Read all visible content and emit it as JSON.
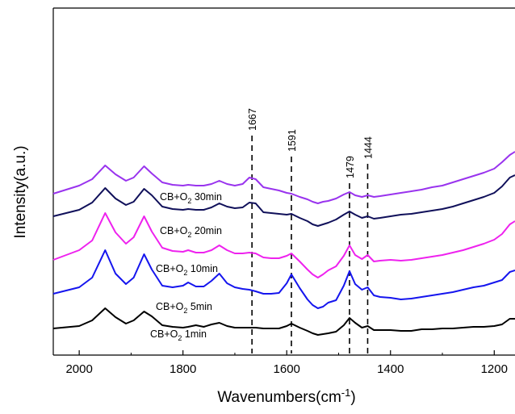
{
  "chart_data": {
    "type": "line",
    "title": "",
    "xlabel": "Wavenumbers(cm",
    "xlabel_sup": "-1",
    "xlabel_close": ")",
    "ylabel": "Intensity(a.u.)",
    "xlim": [
      2050,
      1160
    ],
    "x_reversed": true,
    "y_ticks_shown": false,
    "xticks": [
      {
        "value": 2000,
        "label": "2000"
      },
      {
        "value": 1800,
        "label": "1800"
      },
      {
        "value": 1600,
        "label": "1600"
      },
      {
        "value": 1400,
        "label": "1400"
      },
      {
        "value": 1200,
        "label": "1200"
      }
    ],
    "reference_lines": [
      {
        "x": 1667,
        "label": "1667"
      },
      {
        "x": 1591,
        "label": "1591"
      },
      {
        "x": 1479,
        "label": "1479"
      },
      {
        "x": 1444,
        "label": "1444"
      }
    ],
    "x": [
      2050,
      2000,
      1975,
      1950,
      1930,
      1910,
      1895,
      1875,
      1860,
      1840,
      1820,
      1800,
      1790,
      1775,
      1760,
      1745,
      1730,
      1715,
      1700,
      1685,
      1672,
      1660,
      1645,
      1630,
      1615,
      1600,
      1591,
      1575,
      1560,
      1550,
      1540,
      1530,
      1520,
      1505,
      1490,
      1479,
      1468,
      1455,
      1444,
      1432,
      1420,
      1400,
      1380,
      1360,
      1340,
      1320,
      1300,
      1280,
      1260,
      1240,
      1220,
      1200,
      1185,
      1170,
      1160
    ],
    "series": [
      {
        "name": "CB+O₂ 1min",
        "label_main": "CB+O",
        "label_sub": "2",
        "label_rest": " 1min",
        "color": "#000000",
        "values": [
          0.0,
          3,
          10,
          25,
          14,
          6,
          10,
          21,
          15,
          4,
          2,
          1,
          2,
          4,
          2,
          5,
          7,
          3,
          1,
          1,
          1,
          1,
          0,
          0,
          0,
          3,
          6,
          1,
          -3,
          -6,
          -8,
          -7,
          -6,
          -4,
          4,
          13,
          7,
          1,
          3,
          -2,
          -2,
          -2,
          -3,
          -3,
          -1,
          -1,
          0,
          0,
          1,
          2,
          2,
          3,
          5,
          12,
          12
        ]
      },
      {
        "name": "CB+O₂ 5min",
        "label_main": "CB+O",
        "label_sub": "2",
        "label_rest": " 5min",
        "color": "#1515ee",
        "values": [
          0,
          8,
          20,
          54,
          25,
          12,
          20,
          49,
          30,
          10,
          8,
          10,
          14,
          9,
          9,
          16,
          25,
          13,
          8,
          6,
          5,
          3,
          0,
          0,
          1,
          13,
          24,
          7,
          -7,
          -14,
          -18,
          -16,
          -11,
          -8,
          10,
          28,
          12,
          5,
          8,
          -2,
          -4,
          -5,
          -7,
          -6,
          -4,
          -2,
          0,
          2,
          5,
          8,
          10,
          14,
          17,
          27,
          29
        ]
      },
      {
        "name": "CB+O₂ 10min",
        "label_main": "CB+O",
        "label_sub": "2",
        "label_rest": " 10min",
        "color": "#ee22ee",
        "values": [
          0,
          12,
          24,
          58,
          34,
          20,
          28,
          54,
          35,
          15,
          11,
          10,
          12,
          9,
          9,
          12,
          18,
          12,
          8,
          8,
          9,
          8,
          3,
          2,
          2,
          5,
          8,
          -2,
          -12,
          -18,
          -22,
          -18,
          -13,
          -8,
          5,
          18,
          6,
          1,
          6,
          -2,
          -1,
          0,
          -1,
          0,
          2,
          4,
          6,
          9,
          12,
          16,
          20,
          25,
          32,
          44,
          48
        ]
      },
      {
        "name": "CB+O₂ 20min",
        "label_main": "CB+O",
        "label_sub": "2",
        "label_rest": " 20min",
        "color": "#10105a",
        "values": [
          0,
          8,
          17,
          35,
          22,
          14,
          18,
          34,
          26,
          12,
          9,
          8,
          9,
          8,
          8,
          11,
          16,
          12,
          10,
          11,
          17,
          16,
          5,
          4,
          3,
          2,
          3,
          -2,
          -6,
          -10,
          -12,
          -10,
          -8,
          -4,
          2,
          6,
          2,
          -2,
          0,
          -3,
          -2,
          0,
          2,
          3,
          5,
          7,
          9,
          12,
          16,
          20,
          24,
          29,
          37,
          48,
          51
        ]
      },
      {
        "name": "CB+O₂ 30min",
        "label_main": "CB+O",
        "label_sub": "2",
        "label_rest": " 30min",
        "color": "#9933ee",
        "values": [
          0,
          10,
          18,
          35,
          24,
          16,
          20,
          34,
          25,
          14,
          11,
          10,
          11,
          10,
          10,
          12,
          16,
          12,
          10,
          12,
          20,
          18,
          8,
          6,
          4,
          1,
          0,
          -4,
          -7,
          -10,
          -12,
          -10,
          -9,
          -6,
          -1,
          2,
          -2,
          -4,
          -2,
          -4,
          -3,
          -1,
          1,
          3,
          5,
          8,
          10,
          14,
          18,
          22,
          26,
          31,
          39,
          48,
          52
        ]
      }
    ]
  }
}
